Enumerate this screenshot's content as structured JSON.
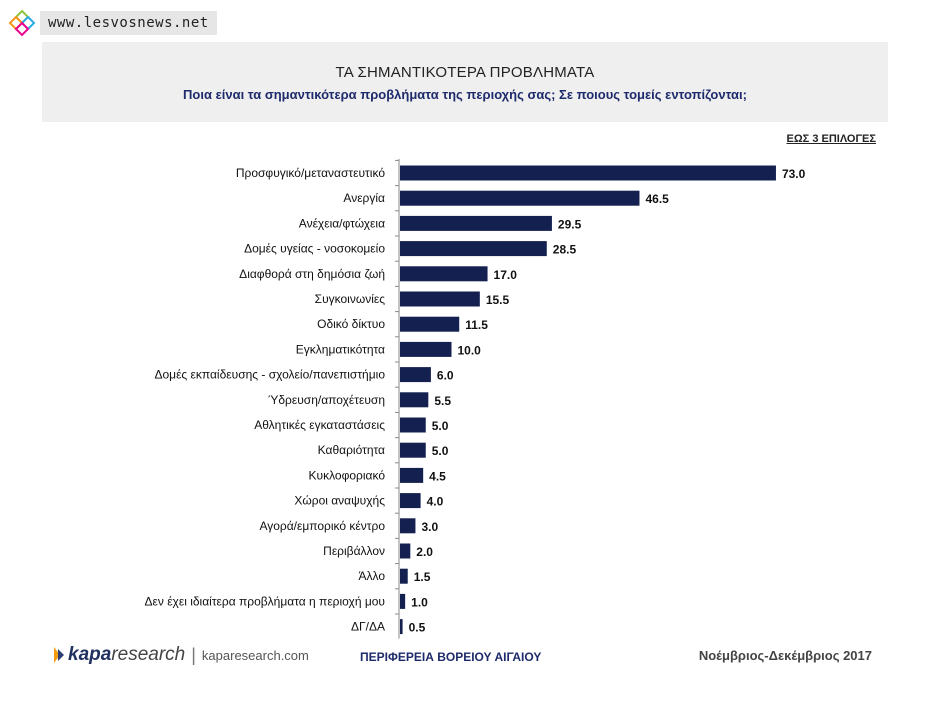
{
  "watermark": {
    "text": "www.lesvosnews.net"
  },
  "header": {
    "title": "ΤΑ ΣΗΜΑΝΤΙΚΟΤΕΡΑ ΠΡΟΒΛΗΜΑΤΑ",
    "subtitle": "Ποια είναι τα σημαντικότερα προβλήματα της περιοχής σας; Σε ποιους τομείς εντοπίζονται;"
  },
  "note": "ΕΩΣ 3 ΕΠΙΛΟΓΕΣ",
  "footer": {
    "logo_k": "kapa",
    "logo_r": "research",
    "separator": "|",
    "url": "kaparesearch.com",
    "region": "ΠΕΡΙΦΕΡΕΙΑ ΒΟΡΕΙΟΥ ΑΙΓΑΙΟΥ",
    "period": "Νοέμβριος-Δεκέμβριος 2017"
  },
  "chart_data": {
    "type": "bar",
    "orientation": "horizontal",
    "categories": [
      "Προσφυγικό/μεταναστευτικό",
      "Ανεργία",
      "Ανέχεια/φτώχεια",
      "Δομές υγείας - νοσοκομείο",
      "Διαφθορά στη δημόσια ζωή",
      "Συγκοινωνίες",
      "Οδικό δίκτυο",
      "Εγκληματικότητα",
      "Δομές εκπαίδευσης - σχολείο/πανεπιστήμιο",
      "Ύδρευση/αποχέτευση",
      "Αθλητικές εγκαταστάσεις",
      "Καθαριότητα",
      "Κυκλοφοριακό",
      "Χώροι αναψυχής",
      "Αγορά/εμπορικό κέντρο",
      "Περιβάλλον",
      "Άλλο",
      "Δεν έχει ιδιαίτερα προβλήματα η περιοχή μου",
      "ΔΓ/ΔΑ"
    ],
    "values": [
      73.0,
      46.5,
      29.5,
      28.5,
      17.0,
      15.5,
      11.5,
      10.0,
      6.0,
      5.5,
      5.0,
      5.0,
      4.5,
      4.0,
      3.0,
      2.0,
      1.5,
      1.0,
      0.5
    ],
    "value_labels": [
      "73.0",
      "46.5",
      "29.5",
      "28.5",
      "17.0",
      "15.5",
      "11.5",
      "10.0",
      "6.0",
      "5.5",
      "5.0",
      "5.0",
      "4.5",
      "4.0",
      "3.0",
      "2.0",
      "1.5",
      "1.0",
      "0.5"
    ],
    "xlim": [
      0,
      100
    ],
    "bar_color": "#14204f",
    "grid": false,
    "legend": "none"
  }
}
